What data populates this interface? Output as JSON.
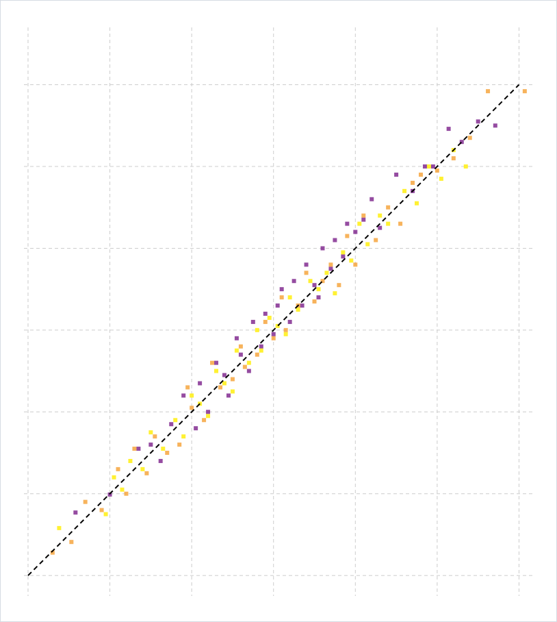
{
  "chart_data": {
    "type": "scatter",
    "xlim": [
      -0.05,
      6.18
    ],
    "ylim": [
      -0.25,
      6.7
    ],
    "xticks": [
      0,
      1,
      2,
      3,
      4,
      5,
      6
    ],
    "yticks": [
      0,
      1,
      2,
      3,
      4,
      5,
      6
    ],
    "grid": true,
    "reference_line": {
      "x": [
        0,
        6
      ],
      "y": [
        0,
        6
      ],
      "color": "#000000"
    },
    "series": [
      {
        "color": "#7b1f8a",
        "x": [
          0.58,
          1.0,
          1.35,
          1.5,
          1.62,
          1.75,
          1.9,
          2.05,
          2.1,
          2.2,
          2.3,
          2.4,
          2.45,
          2.55,
          2.6,
          2.7,
          2.75,
          2.85,
          2.9,
          3.0,
          3.05,
          3.1,
          3.2,
          3.25,
          3.35,
          3.4,
          3.5,
          3.55,
          3.6,
          3.7,
          3.75,
          3.85,
          3.9,
          4.0,
          4.1,
          4.2,
          4.3,
          4.5,
          4.7,
          4.85,
          4.95,
          5.14,
          5.3,
          5.5,
          5.71
        ],
        "values": [
          0.77,
          0.99,
          1.55,
          1.6,
          1.4,
          1.85,
          2.2,
          1.8,
          2.35,
          2.0,
          2.6,
          2.45,
          2.2,
          2.9,
          2.7,
          2.5,
          3.1,
          2.8,
          3.2,
          2.95,
          3.3,
          3.5,
          3.1,
          3.6,
          3.3,
          3.8,
          3.55,
          3.4,
          4.0,
          3.75,
          4.1,
          3.9,
          4.3,
          4.2,
          4.35,
          4.6,
          4.25,
          4.9,
          4.7,
          5.0,
          5.0,
          5.46,
          5.3,
          5.55,
          5.5
        ]
      },
      {
        "color": "#f5a033",
        "x": [
          0.3,
          0.53,
          0.7,
          0.9,
          1.1,
          1.2,
          1.3,
          1.45,
          1.55,
          1.7,
          1.85,
          1.95,
          2.0,
          2.15,
          2.25,
          2.35,
          2.5,
          2.6,
          2.65,
          2.8,
          2.9,
          3.0,
          3.1,
          3.15,
          3.3,
          3.4,
          3.5,
          3.6,
          3.7,
          3.8,
          3.9,
          4.0,
          4.1,
          4.25,
          4.4,
          4.55,
          4.7,
          4.8,
          5.0,
          5.2,
          5.4,
          5.62,
          6.07
        ],
        "values": [
          0.28,
          0.41,
          0.9,
          0.8,
          1.3,
          1.0,
          1.55,
          1.25,
          1.7,
          1.5,
          1.6,
          2.3,
          2.05,
          1.9,
          2.6,
          2.3,
          2.4,
          2.8,
          2.55,
          2.7,
          3.1,
          2.9,
          3.4,
          3.0,
          3.3,
          3.7,
          3.35,
          3.6,
          3.8,
          3.55,
          4.15,
          3.8,
          4.4,
          4.1,
          4.5,
          4.3,
          4.8,
          4.9,
          4.95,
          5.1,
          5.35,
          5.92,
          5.92
        ]
      },
      {
        "color": "#ffee00",
        "x": [
          0.38,
          0.95,
          1.05,
          1.15,
          1.25,
          1.4,
          1.5,
          1.65,
          1.8,
          1.9,
          2.0,
          2.1,
          2.2,
          2.3,
          2.4,
          2.5,
          2.55,
          2.7,
          2.8,
          2.85,
          2.95,
          3.05,
          3.15,
          3.2,
          3.3,
          3.45,
          3.55,
          3.65,
          3.75,
          3.85,
          3.95,
          4.05,
          4.15,
          4.3,
          4.4,
          4.6,
          4.75,
          4.9,
          5.05,
          5.2,
          5.35
        ],
        "values": [
          0.58,
          0.75,
          1.2,
          1.05,
          1.4,
          1.3,
          1.75,
          1.55,
          1.9,
          1.7,
          2.2,
          2.1,
          1.95,
          2.5,
          2.35,
          2.25,
          2.75,
          2.6,
          3.0,
          2.75,
          3.15,
          3.05,
          2.95,
          3.4,
          3.25,
          3.6,
          3.5,
          3.7,
          3.45,
          3.95,
          3.85,
          4.3,
          4.05,
          4.4,
          4.3,
          4.7,
          4.55,
          5.0,
          4.85,
          5.2,
          5.0
        ]
      }
    ]
  }
}
